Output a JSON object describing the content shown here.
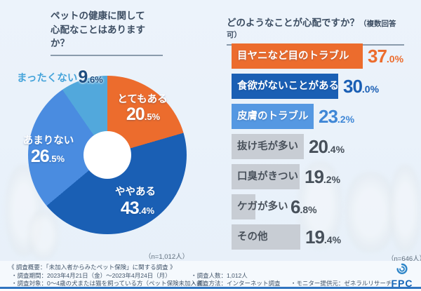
{
  "chart_data": [
    {
      "type": "pie",
      "style": "donut",
      "title_lines": [
        "ペットの健康に関して",
        "心配なことはありますか？"
      ],
      "labels": [
        "とてもある",
        "ややある",
        "あまりない",
        "まったくない"
      ],
      "values": [
        20.5,
        43.4,
        26.5,
        9.6
      ],
      "colors": [
        "#ec6c2d",
        "#1a5fb4",
        "#4a8ce0",
        "#52a8dc"
      ],
      "start_angle_deg": 0,
      "direction": "clockwise",
      "n_label": "（n=1,012人）"
    },
    {
      "type": "bar",
      "orientation": "horizontal",
      "title": "どのようなことが心配ですか？",
      "title_note": "（複数回答可）",
      "categories": [
        "目ヤニなど目のトラブル",
        "食欲がないことがある",
        "皮膚のトラブル",
        "抜け毛が多い",
        "口臭がきつい",
        "ケガが多い",
        "その他"
      ],
      "values": [
        37.0,
        30.0,
        23.2,
        20.4,
        19.2,
        6.8,
        19.4
      ],
      "colors": [
        "#ec6c2d",
        "#1a5fb4",
        "#5598e2",
        "#c8cdd4",
        "#c8cdd4",
        "#c8cdd4",
        "#c8cdd4"
      ],
      "label_colors": [
        "#ffffff",
        "#ffffff",
        "#ffffff",
        "#4a525c",
        "#4a525c",
        "#4a525c",
        "#4a525c"
      ],
      "value_colors": [
        "#ec6c2d",
        "#1a5fb4",
        "#3f87d6",
        "#47505a",
        "#47505a",
        "#47505a",
        "#47505a"
      ],
      "xlim": [
        0,
        40
      ],
      "n_label": "（n=646人）"
    }
  ],
  "footer": {
    "overview": "《 調査概要：「未加入者からみたペット保険」に関する調査 》",
    "period": "・調査期間：2023年4月21日（金）～2023年4月24日（月）",
    "respondents": "・調査人数：1,012人",
    "target": "・調査対象：0～4歳の犬または猫を飼っている方（ペット保険未加入者）",
    "method": "・調査方法：インターネット調査",
    "monitor": "・モニター提供元：ゼネラルリサーチ",
    "logo_text": "FPC"
  }
}
